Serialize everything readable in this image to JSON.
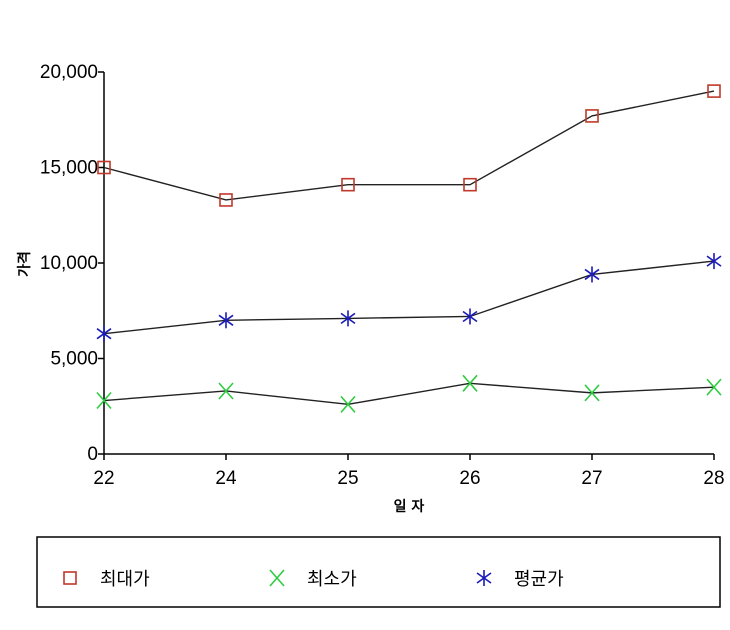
{
  "chart_data": {
    "type": "line",
    "categories": [
      "22",
      "24",
      "25",
      "26",
      "27",
      "28"
    ],
    "xlabel": "일 자",
    "ylabel": "가격",
    "ylim": [
      0,
      20000
    ],
    "yticks": [
      "0",
      "5,000",
      "10,000",
      "15,000",
      "20,000"
    ],
    "ytick_values": [
      0,
      5000,
      10000,
      15000,
      20000
    ],
    "series": [
      {
        "name": "최대가",
        "values": [
          15000,
          13300,
          14100,
          14100,
          17700,
          19000
        ],
        "color": "#c0392b",
        "marker": "square"
      },
      {
        "name": "최소가",
        "values": [
          2800,
          3300,
          2600,
          3700,
          3200,
          3500
        ],
        "color": "#2ecc40",
        "marker": "x"
      },
      {
        "name": "평균가",
        "values": [
          6300,
          7000,
          7100,
          7200,
          9400,
          10100
        ],
        "color": "#1a1ab8",
        "marker": "asterisk"
      }
    ],
    "grid": false,
    "legend_position": "bottom"
  }
}
